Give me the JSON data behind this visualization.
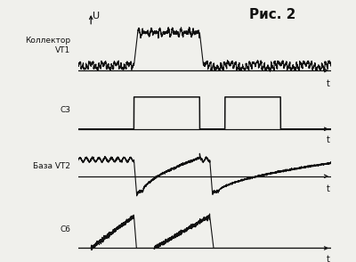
{
  "figure_title": "Рис. 2",
  "labels": [
    "Коллектор\nVT1",
    "С3",
    "База VT2",
    "С6"
  ],
  "axis_label_u": "U",
  "axis_label_t": "t",
  "bg_color": "#f0f0ec",
  "line_color": "#111111",
  "figsize": [
    4.0,
    2.94
  ],
  "dpi": 100
}
